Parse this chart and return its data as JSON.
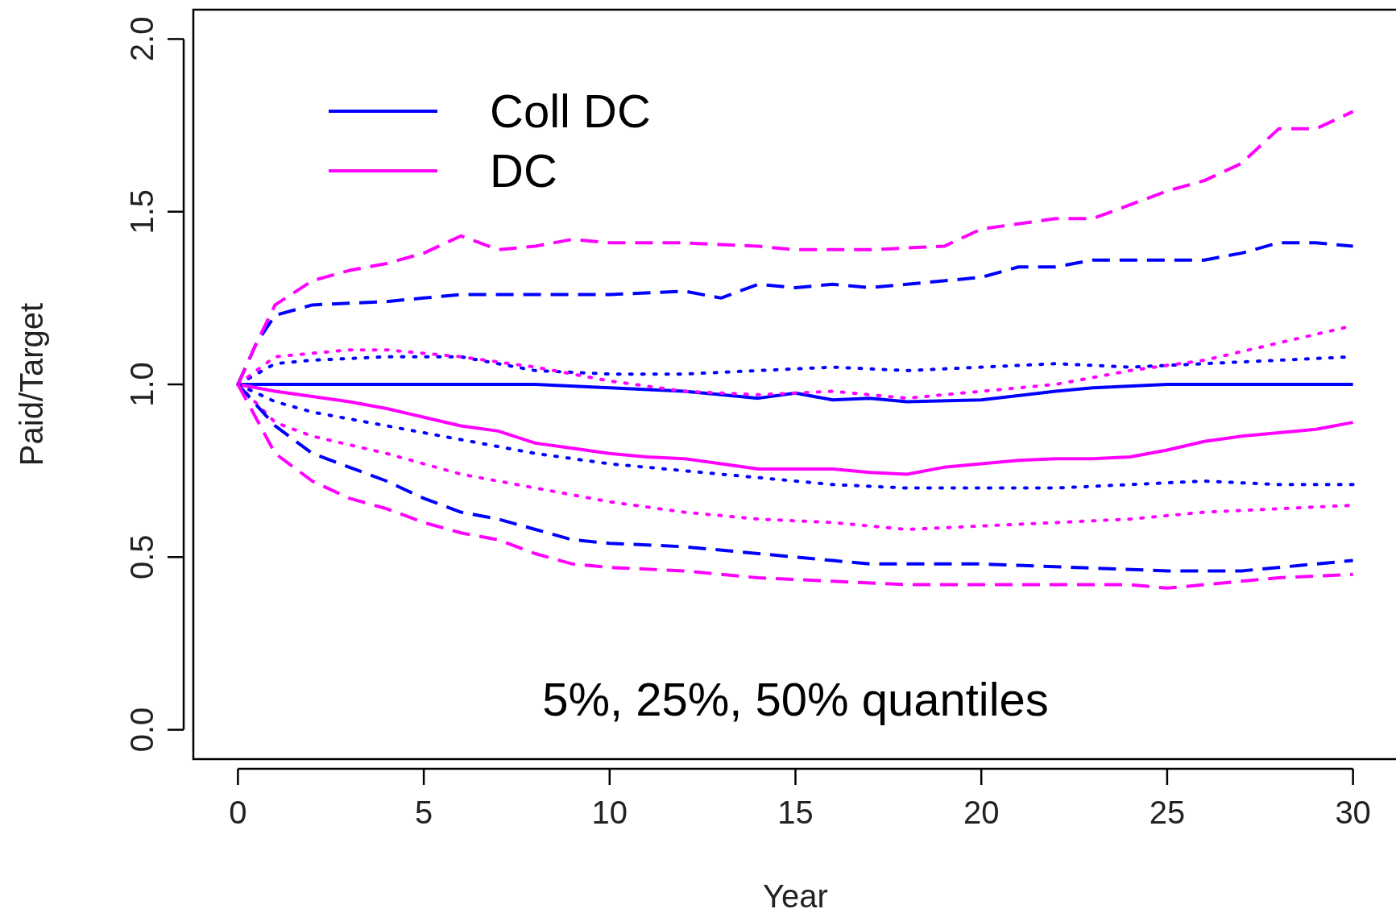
{
  "chart_data": {
    "type": "line",
    "xlabel": "Year",
    "ylabel": "Paid/Target",
    "xlim": [
      -1.2,
      31.2
    ],
    "ylim": [
      -0.085,
      2.085
    ],
    "xticks": [
      0,
      5,
      10,
      15,
      20,
      25,
      30
    ],
    "yticks": [
      {
        "value": 0,
        "label": "0.0"
      },
      {
        "value": 0.5,
        "label": "0.5"
      },
      {
        "value": 1,
        "label": "1.0"
      },
      {
        "value": 1.5,
        "label": "1.5"
      },
      {
        "value": 2,
        "label": "2.0"
      }
    ],
    "legend": "top left",
    "grid": false,
    "annotations": [
      "5%, 25%, 50% quantiles"
    ],
    "series": [
      {
        "name": "Coll DC",
        "color": "#0000ff",
        "line_style": "solid",
        "x": [
          0,
          8,
          10,
          12,
          13,
          14,
          15,
          16,
          17,
          18,
          20,
          22,
          23,
          25,
          30
        ],
        "values": [
          1.0,
          1.0,
          0.99,
          0.98,
          0.97,
          0.96,
          0.975,
          0.955,
          0.96,
          0.95,
          0.955,
          0.98,
          0.99,
          1.0,
          1.0
        ]
      },
      {
        "name": "DC",
        "color": "#ff00ff",
        "line_style": "solid",
        "x": [
          0,
          1,
          2,
          3,
          4,
          5,
          6,
          7,
          8,
          9,
          10,
          11,
          12,
          13,
          14,
          15,
          16,
          17,
          18,
          19,
          20,
          21,
          22,
          23,
          24,
          25,
          26,
          27,
          28,
          29,
          30
        ],
        "values": [
          1.0,
          0.98,
          0.965,
          0.95,
          0.93,
          0.905,
          0.88,
          0.865,
          0.83,
          0.815,
          0.8,
          0.79,
          0.785,
          0.77,
          0.755,
          0.755,
          0.755,
          0.745,
          0.74,
          0.76,
          0.77,
          0.78,
          0.785,
          0.785,
          0.79,
          0.81,
          0.835,
          0.85,
          0.86,
          0.87,
          0.89
        ]
      },
      {
        "color": "#0000ff",
        "line_style": "dashed",
        "x": [
          0,
          0.5,
          1,
          2,
          4,
          5,
          6,
          8,
          10,
          12,
          13,
          14,
          15,
          16,
          17,
          18,
          20,
          21,
          22,
          23,
          25,
          26,
          27,
          28,
          29,
          30
        ],
        "values": [
          1.0,
          1.12,
          1.2,
          1.23,
          1.24,
          1.25,
          1.26,
          1.26,
          1.26,
          1.27,
          1.25,
          1.29,
          1.28,
          1.29,
          1.28,
          1.29,
          1.31,
          1.34,
          1.34,
          1.36,
          1.36,
          1.36,
          1.38,
          1.41,
          1.41,
          1.4
        ]
      },
      {
        "color": "#ff00ff",
        "line_style": "dashed",
        "x": [
          0,
          0.5,
          1,
          2,
          3,
          4,
          5,
          6,
          7,
          8,
          9,
          10,
          12,
          14,
          15,
          17,
          19,
          20,
          22,
          23,
          24,
          25,
          26,
          27,
          28,
          29,
          30
        ],
        "values": [
          1.0,
          1.12,
          1.23,
          1.3,
          1.33,
          1.35,
          1.38,
          1.43,
          1.39,
          1.4,
          1.42,
          1.41,
          1.41,
          1.4,
          1.39,
          1.39,
          1.4,
          1.45,
          1.48,
          1.48,
          1.52,
          1.56,
          1.59,
          1.64,
          1.74,
          1.74,
          1.79
        ]
      },
      {
        "color": "#0000ff",
        "line_style": "dotted",
        "x": [
          0,
          1,
          2,
          4,
          6,
          8,
          10,
          12,
          14,
          16,
          18,
          20,
          22,
          24,
          26,
          28,
          30
        ],
        "values": [
          1.0,
          1.06,
          1.07,
          1.08,
          1.08,
          1.04,
          1.03,
          1.03,
          1.04,
          1.05,
          1.04,
          1.05,
          1.06,
          1.05,
          1.06,
          1.07,
          1.08
        ]
      },
      {
        "color": "#ff00ff",
        "line_style": "dotted",
        "x": [
          0,
          1,
          2,
          3,
          4,
          5,
          6,
          8,
          10,
          12,
          14,
          16,
          18,
          20,
          22,
          24,
          26,
          28,
          30
        ],
        "values": [
          1.0,
          1.08,
          1.09,
          1.1,
          1.1,
          1.09,
          1.08,
          1.05,
          1.01,
          0.98,
          0.97,
          0.98,
          0.96,
          0.98,
          1.0,
          1.04,
          1.07,
          1.12,
          1.17
        ]
      },
      {
        "color": "#0000ff",
        "line_style": "dotted",
        "x": [
          0,
          1,
          2,
          4,
          6,
          8,
          10,
          12,
          14,
          16,
          18,
          20,
          22,
          24,
          26,
          28,
          30
        ],
        "values": [
          1.0,
          0.95,
          0.92,
          0.88,
          0.84,
          0.8,
          0.77,
          0.75,
          0.73,
          0.71,
          0.7,
          0.7,
          0.7,
          0.71,
          0.72,
          0.71,
          0.71
        ]
      },
      {
        "color": "#ff00ff",
        "line_style": "dotted",
        "x": [
          0,
          1,
          2,
          4,
          6,
          8,
          10,
          12,
          14,
          16,
          18,
          20,
          22,
          24,
          26,
          28,
          30
        ],
        "values": [
          1.0,
          0.89,
          0.85,
          0.8,
          0.74,
          0.7,
          0.66,
          0.63,
          0.61,
          0.6,
          0.58,
          0.59,
          0.6,
          0.61,
          0.63,
          0.64,
          0.65
        ]
      },
      {
        "color": "#0000ff",
        "line_style": "dashed",
        "x": [
          0,
          1,
          2,
          3,
          4,
          5,
          6,
          7,
          8,
          9,
          10,
          12,
          14,
          15,
          16,
          17,
          20,
          25,
          27,
          30
        ],
        "values": [
          1.0,
          0.88,
          0.8,
          0.76,
          0.72,
          0.67,
          0.63,
          0.61,
          0.58,
          0.55,
          0.54,
          0.53,
          0.51,
          0.5,
          0.49,
          0.48,
          0.48,
          0.46,
          0.46,
          0.49
        ]
      },
      {
        "color": "#ff00ff",
        "line_style": "dashed",
        "x": [
          0,
          1,
          2,
          3,
          4,
          5,
          6,
          7,
          8,
          9,
          10,
          12,
          14,
          16,
          18,
          20,
          22,
          24,
          25,
          26,
          28,
          30
        ],
        "values": [
          1.0,
          0.8,
          0.72,
          0.67,
          0.64,
          0.6,
          0.57,
          0.55,
          0.51,
          0.48,
          0.47,
          0.46,
          0.44,
          0.43,
          0.42,
          0.42,
          0.42,
          0.42,
          0.41,
          0.42,
          0.44,
          0.45
        ]
      }
    ]
  }
}
